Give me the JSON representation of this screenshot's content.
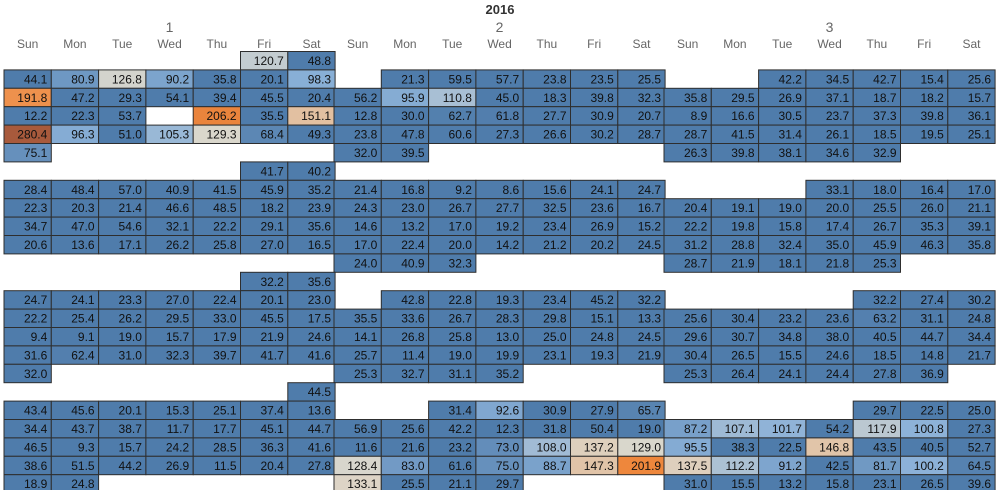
{
  "chart_data": {
    "type": "heatmap",
    "title": "2016",
    "months": [
      "1",
      "2",
      "3"
    ],
    "day_labels": [
      "Sun",
      "Mon",
      "Tue",
      "Wed",
      "Thu",
      "Fri",
      "Sat"
    ],
    "rows": [
      [
        [
          null,
          null,
          null,
          null,
          null,
          120.7,
          48.8
        ],
        [
          null,
          null,
          null,
          null,
          null,
          null,
          null
        ],
        [
          null,
          null,
          null,
          null,
          null,
          null,
          null
        ]
      ],
      [
        [
          44.1,
          80.9,
          126.8,
          90.2,
          35.8,
          20.1,
          98.3
        ],
        [
          null,
          21.3,
          59.5,
          57.7,
          23.8,
          23.5,
          25.5
        ],
        [
          null,
          null,
          42.2,
          34.5,
          42.7,
          15.4,
          25.6
        ]
      ],
      [
        [
          191.8,
          47.2,
          29.3,
          54.1,
          39.4,
          45.5,
          20.4
        ],
        [
          56.2,
          95.9,
          110.8,
          45.0,
          18.3,
          39.8,
          32.3
        ],
        [
          35.8,
          29.5,
          26.9,
          37.1,
          18.7,
          18.2,
          15.7
        ]
      ],
      [
        [
          12.2,
          22.3,
          53.7,
          null,
          206.2,
          35.5,
          151.1
        ],
        [
          12.8,
          30.0,
          62.7,
          61.8,
          27.7,
          30.9,
          20.7
        ],
        [
          8.9,
          16.6,
          30.5,
          23.7,
          37.3,
          39.8,
          36.1
        ]
      ],
      [
        [
          280.4,
          96.3,
          51.0,
          105.3,
          129.3,
          68.4,
          49.3
        ],
        [
          23.8,
          47.8,
          60.6,
          27.3,
          26.6,
          30.2,
          28.7
        ],
        [
          28.7,
          41.5,
          31.4,
          26.1,
          18.5,
          19.5,
          25.1
        ]
      ],
      [
        [
          75.1,
          null,
          null,
          null,
          null,
          null,
          null
        ],
        [
          32.0,
          39.5,
          null,
          null,
          null,
          null,
          null
        ],
        [
          26.3,
          39.8,
          38.1,
          34.6,
          32.9,
          null,
          null
        ]
      ],
      [
        [
          null,
          null,
          null,
          null,
          null,
          41.7,
          40.2
        ],
        [
          null,
          null,
          null,
          null,
          null,
          null,
          null
        ],
        [
          null,
          null,
          null,
          null,
          null,
          null,
          null
        ]
      ],
      [
        [
          28.4,
          48.4,
          57.0,
          40.9,
          41.5,
          45.9,
          35.2
        ],
        [
          21.4,
          16.8,
          9.2,
          8.6,
          15.6,
          24.1,
          24.7
        ],
        [
          null,
          null,
          null,
          33.1,
          18.0,
          16.4,
          17.0
        ]
      ],
      [
        [
          22.3,
          20.3,
          21.4,
          46.6,
          48.5,
          18.2,
          23.9
        ],
        [
          24.3,
          23.0,
          26.7,
          27.7,
          32.5,
          23.6,
          16.7
        ],
        [
          20.4,
          19.1,
          19.0,
          20.0,
          25.5,
          26.0,
          21.1
        ]
      ],
      [
        [
          34.7,
          47.0,
          54.6,
          32.1,
          22.2,
          29.1,
          35.6
        ],
        [
          14.6,
          13.2,
          17.0,
          19.2,
          23.4,
          26.9,
          15.2
        ],
        [
          22.2,
          19.8,
          15.8,
          17.4,
          26.7,
          35.3,
          39.1
        ]
      ],
      [
        [
          20.6,
          13.6,
          17.1,
          26.2,
          25.8,
          27.0,
          16.5
        ],
        [
          17.0,
          22.4,
          20.0,
          14.2,
          21.2,
          20.2,
          24.5
        ],
        [
          31.2,
          28.8,
          32.4,
          35.0,
          45.9,
          46.3,
          35.8
        ]
      ],
      [
        [
          null,
          null,
          null,
          null,
          null,
          null,
          null
        ],
        [
          24.0,
          40.9,
          32.3,
          null,
          null,
          null,
          null
        ],
        [
          28.7,
          21.9,
          18.1,
          21.8,
          25.3,
          null,
          null
        ]
      ],
      [
        [
          null,
          null,
          null,
          null,
          null,
          32.2,
          35.6
        ],
        [
          null,
          null,
          null,
          null,
          null,
          null,
          null
        ],
        [
          null,
          null,
          null,
          null,
          null,
          null,
          null
        ]
      ],
      [
        [
          24.7,
          24.1,
          23.3,
          27.0,
          22.4,
          20.1,
          23.0
        ],
        [
          null,
          42.8,
          22.8,
          19.3,
          23.4,
          45.2,
          32.2
        ],
        [
          null,
          null,
          null,
          null,
          32.2,
          27.4,
          30.2
        ]
      ],
      [
        [
          22.2,
          25.4,
          26.2,
          29.5,
          33.0,
          45.5,
          17.5
        ],
        [
          35.5,
          33.6,
          26.7,
          28.3,
          29.8,
          15.1,
          13.3
        ],
        [
          25.6,
          30.4,
          23.2,
          23.6,
          63.2,
          31.1,
          24.8
        ]
      ],
      [
        [
          9.4,
          9.1,
          19.0,
          15.7,
          17.9,
          21.9,
          24.6
        ],
        [
          14.1,
          26.8,
          25.8,
          13.0,
          25.0,
          24.8,
          24.5
        ],
        [
          29.6,
          30.7,
          34.8,
          38.0,
          40.5,
          44.7,
          34.4
        ]
      ],
      [
        [
          31.6,
          62.4,
          31.0,
          32.3,
          39.7,
          41.7,
          41.6
        ],
        [
          25.7,
          11.4,
          19.0,
          19.9,
          23.1,
          19.3,
          21.9
        ],
        [
          30.4,
          26.5,
          15.5,
          24.6,
          18.5,
          14.8,
          21.7
        ]
      ],
      [
        [
          32.0,
          null,
          null,
          null,
          null,
          null,
          null
        ],
        [
          25.3,
          32.7,
          31.1,
          35.2,
          null,
          null,
          null
        ],
        [
          25.3,
          26.4,
          24.1,
          24.4,
          27.8,
          36.9,
          null
        ]
      ],
      [
        [
          null,
          null,
          null,
          null,
          null,
          null,
          44.5
        ],
        [
          null,
          null,
          null,
          null,
          null,
          null,
          null
        ],
        [
          null,
          null,
          null,
          null,
          null,
          null,
          null
        ]
      ],
      [
        [
          43.4,
          45.6,
          20.1,
          15.3,
          25.1,
          37.4,
          13.6
        ],
        [
          null,
          null,
          31.4,
          92.6,
          30.9,
          27.9,
          65.7
        ],
        [
          null,
          null,
          null,
          null,
          29.7,
          22.5,
          25.0
        ]
      ],
      [
        [
          34.4,
          43.7,
          38.7,
          11.7,
          17.7,
          45.1,
          44.7
        ],
        [
          56.9,
          25.6,
          42.2,
          12.3,
          31.8,
          50.4,
          19.0
        ],
        [
          87.2,
          107.1,
          101.7,
          54.2,
          117.9,
          100.8,
          27.3
        ]
      ],
      [
        [
          46.5,
          9.3,
          15.7,
          24.2,
          28.5,
          36.3,
          41.6
        ],
        [
          11.6,
          21.6,
          23.2,
          73.0,
          108.0,
          137.2,
          129.0
        ],
        [
          95.5,
          38.3,
          22.5,
          146.8,
          43.5,
          40.5,
          52.7
        ]
      ],
      [
        [
          38.6,
          51.5,
          44.2,
          26.9,
          11.5,
          20.4,
          27.8
        ],
        [
          128.4,
          83.0,
          61.6,
          75.0,
          88.7,
          147.3,
          201.9
        ],
        [
          137.5,
          112.2,
          91.2,
          42.5,
          81.7,
          100.2,
          64.5
        ]
      ],
      [
        [
          18.9,
          24.8,
          null,
          null,
          null,
          null,
          null
        ],
        [
          133.1,
          25.5,
          21.1,
          29.7,
          null,
          null,
          null
        ],
        [
          31.0,
          15.5,
          13.2,
          15.8,
          23.1,
          26.5,
          39.6
        ]
      ]
    ],
    "color_scale": {
      "low": "#4f7cab",
      "mid_low": "#8bb1d8",
      "mid": "#dcd8cc",
      "high": "#f0883c",
      "max": "#a85a3c",
      "mid_value": 130,
      "high_value": 200,
      "max_value": 280
    }
  }
}
